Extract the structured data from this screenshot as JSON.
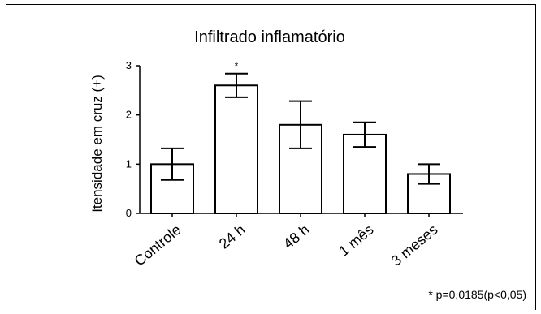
{
  "chart_data": {
    "type": "bar",
    "title": "Infiltrado inflamatório",
    "xlabel": "",
    "ylabel": "Itensidade em cruz (+)",
    "categories": [
      "Controle",
      "24 h",
      "48 h",
      "1 mês",
      "3 meses"
    ],
    "values": [
      1.0,
      2.6,
      1.8,
      1.6,
      0.8
    ],
    "error": [
      0.32,
      0.24,
      0.48,
      0.25,
      0.2
    ],
    "significance": [
      "",
      "*",
      "",
      "",
      ""
    ],
    "yticks": [
      "0",
      "1",
      "2",
      "3"
    ],
    "ylim": [
      0,
      3
    ],
    "grid": false,
    "legend": "none",
    "footnote": "* p=0,0185(p<0,05)"
  }
}
